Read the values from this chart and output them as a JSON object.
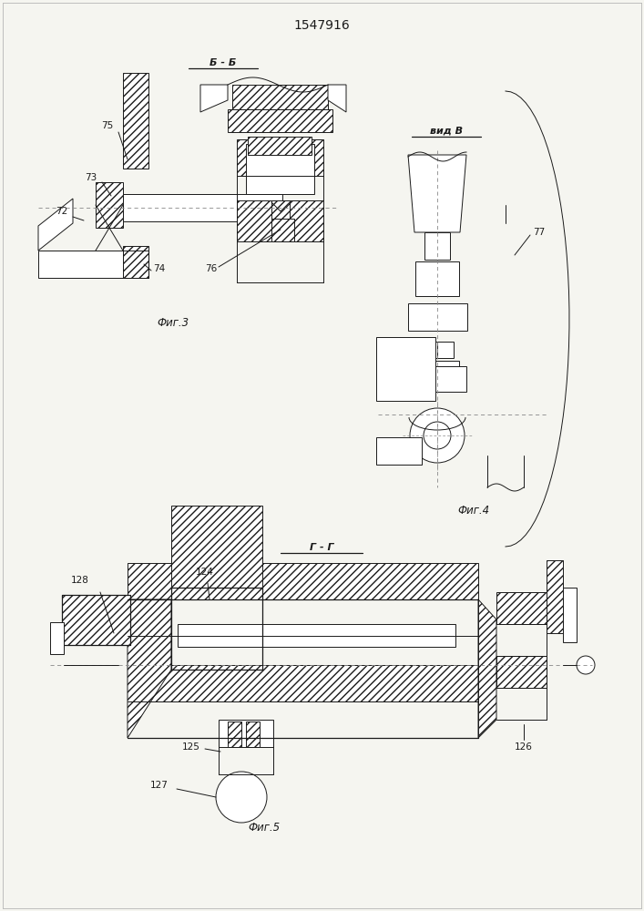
{
  "title": "1547916",
  "bg_color": "#f5f5f0",
  "line_color": "#1a1a1a",
  "fig3_label": "Фиг.3",
  "fig4_label": "Фиг.4",
  "fig5_label": "Фиг.5",
  "section_bb": "Б - Б",
  "section_gg": "Г - Г",
  "view_b": "вид B"
}
